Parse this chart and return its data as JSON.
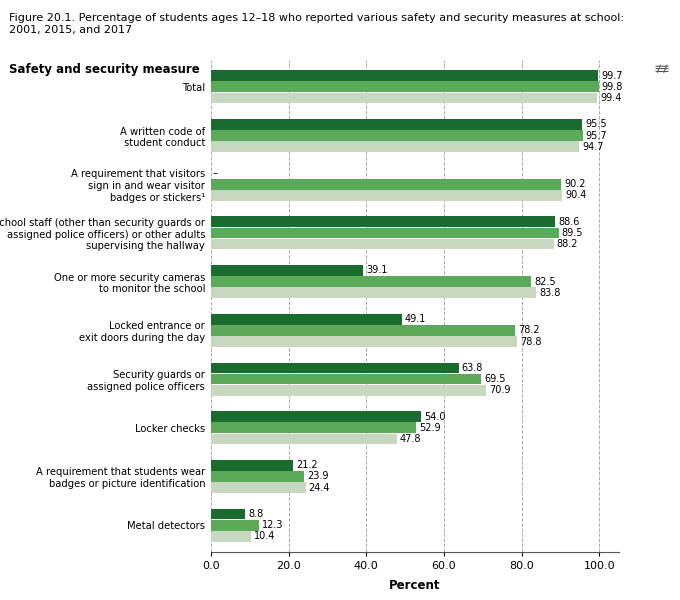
{
  "title_line1": "Figure 20.1. Percentage of students ages 12–18 who reported various safety and security measures at school:",
  "title_line2": "2001, 2015, and 2017",
  "ylabel_label": "Safety and security measure",
  "xlabel_label": "Percent",
  "categories": [
    "Metal detectors",
    "A requirement that students wear\nbadges or picture identification",
    "Locker checks",
    "Security guards or\nassigned police officers",
    "Locked entrance or\nexit doors during the day",
    "One or more security cameras\nto monitor the school",
    "School staff (other than security guards or\nassigned police officers) or other adults\nsupervising the hallway",
    "A requirement that visitors\nsign in and wear visitor\nbadges or stickers¹",
    "A written code of\nstudent conduct",
    "Total"
  ],
  "values_2001": [
    8.8,
    21.2,
    54.0,
    63.8,
    49.1,
    39.1,
    88.6,
    null,
    95.5,
    99.7
  ],
  "values_2015": [
    12.3,
    23.9,
    52.9,
    69.5,
    78.2,
    82.5,
    89.5,
    90.2,
    95.7,
    99.8
  ],
  "values_2017": [
    10.4,
    24.4,
    47.8,
    70.9,
    78.8,
    83.8,
    88.2,
    90.4,
    94.7,
    99.4
  ],
  "color_2001": "#1a6b2e",
  "color_2015": "#5aaa5a",
  "color_2017": "#c8d8c0",
  "xlim": [
    0,
    105
  ],
  "bar_height": 0.22,
  "title_fontsize": 8.0,
  "axis_label_fontsize": 8.5,
  "tick_fontsize": 8.0,
  "value_fontsize": 7.0,
  "category_fontsize": 7.2
}
